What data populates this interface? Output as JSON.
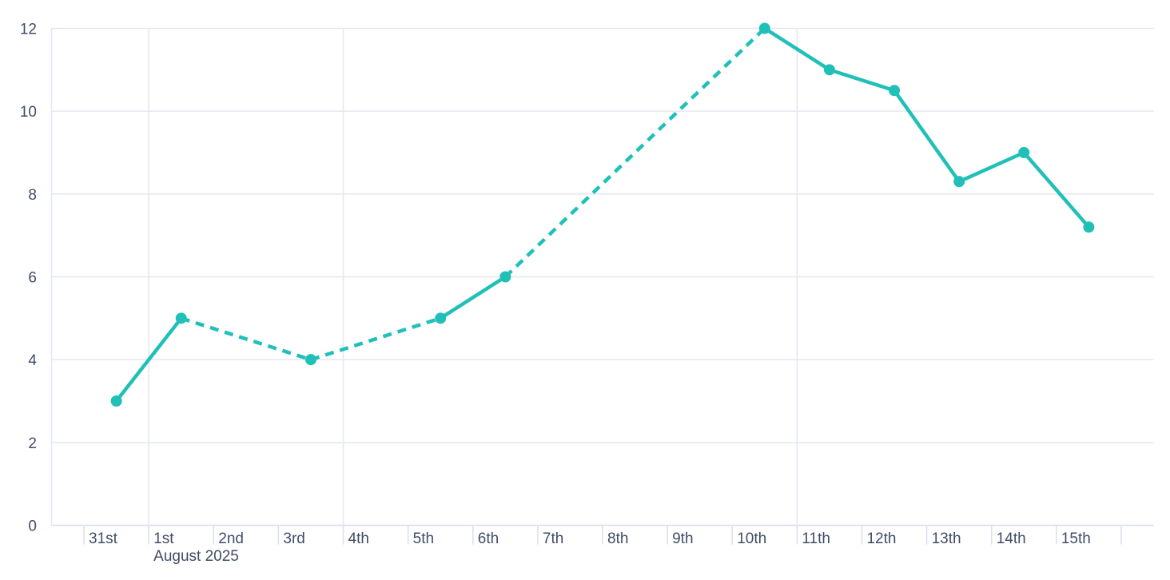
{
  "page": {
    "background_color": "#ffffff"
  },
  "chart_data": {
    "type": "line",
    "title": "",
    "x_axis": {
      "tick_labels": [
        "31st",
        "1st",
        "2nd",
        "3rd",
        "4th",
        "5th",
        "6th",
        "7th",
        "8th",
        "9th",
        "10th",
        "11th",
        "12th",
        "13th",
        "14th",
        "15th"
      ],
      "month_label": "August 2025",
      "month_label_under": "1st",
      "vertical_gridlines_at": [
        "1st",
        "4th",
        "11th"
      ],
      "unlabeled_trailing_tick": true
    },
    "y_axis": {
      "tick_labels": [
        "0",
        "2",
        "4",
        "6",
        "8",
        "10",
        "12"
      ],
      "tick_values": [
        0,
        2,
        4,
        6,
        8,
        10,
        12
      ],
      "min": 0,
      "max": 12
    },
    "series": [
      {
        "name": "daily-values",
        "marker": "circle",
        "points": [
          {
            "label": "31st",
            "day_index": 0,
            "value": 3,
            "segment_to_next": "solid"
          },
          {
            "label": "1st",
            "day_index": 1,
            "value": 5,
            "segment_to_next": "dashed"
          },
          {
            "label": "3rd",
            "day_index": 3,
            "value": 4,
            "segment_to_next": "dashed"
          },
          {
            "label": "5th",
            "day_index": 5,
            "value": 5,
            "segment_to_next": "solid"
          },
          {
            "label": "6th",
            "day_index": 6,
            "value": 6,
            "segment_to_next": "dashed"
          },
          {
            "label": "10th",
            "day_index": 10,
            "value": 12,
            "segment_to_next": "solid"
          },
          {
            "label": "11th",
            "day_index": 11,
            "value": 11,
            "segment_to_next": "solid"
          },
          {
            "label": "12th",
            "day_index": 12,
            "value": 10.5,
            "segment_to_next": "solid"
          },
          {
            "label": "13th",
            "day_index": 13,
            "value": 8.3,
            "segment_to_next": "solid"
          },
          {
            "label": "14th",
            "day_index": 14,
            "value": 9,
            "segment_to_next": "solid"
          },
          {
            "label": "15th",
            "day_index": 15,
            "value": 7.2,
            "segment_to_next": null
          }
        ]
      }
    ],
    "colors": {
      "series": "#20c0b9",
      "gridline": "#e4e7f1",
      "axis_line": "#d8dce8",
      "tick": "#dcdfe9",
      "label": "#404d66",
      "background": "#ffffff"
    },
    "layout_hints": {
      "legend": "none",
      "grid_horizontal": "every y tick",
      "grid_vertical": "month start and Mondays",
      "ylim": [
        0,
        12
      ]
    }
  }
}
